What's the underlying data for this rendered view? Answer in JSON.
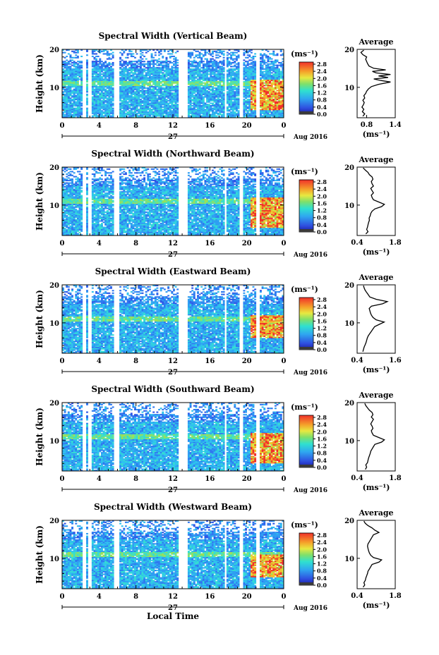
{
  "figure": {
    "colorbar_unit": "(ms⁻¹)",
    "date_label": "Aug 2016",
    "day_label": "27",
    "x_axis_title": "Local Time",
    "y_axis_title": "Height (km)",
    "average_title": "Average",
    "average_xlabel": "(ms⁻¹)"
  },
  "chart_data": [
    {
      "type": "heatmap",
      "title": "Spectral Width (Vertical Beam)",
      "xlim": [
        0,
        24
      ],
      "x_ticks": [
        "0",
        "4",
        "8",
        "12",
        "16",
        "20",
        "0"
      ],
      "ylim": [
        2,
        20
      ],
      "y_ticks": [
        "20",
        "10"
      ],
      "colorbar": {
        "range": [
          0.0,
          2.8
        ],
        "ticks": [
          "2.8",
          "2.4",
          "2.0",
          "1.6",
          "1.2",
          "0.8",
          "0.4",
          "0.0"
        ]
      },
      "data_gaps_hours": [
        [
          2.3,
          2.6
        ],
        [
          2.9,
          3.2
        ],
        [
          5.6,
          6.2
        ],
        [
          12.6,
          13.6
        ],
        [
          17.6,
          17.8
        ],
        [
          19.2,
          19.6
        ],
        [
          21.0,
          21.3
        ]
      ],
      "high_width_region": {
        "x": [
          20.4,
          24
        ],
        "y": [
          4,
          12
        ]
      },
      "average_profile": {
        "xlim": [
          0.6,
          1.4
        ],
        "x_ticks": [
          "0.8",
          "1.4"
        ],
        "ylim": [
          2,
          20
        ],
        "y_ticks": [
          "20",
          "10"
        ],
        "height_km": [
          2.4,
          3,
          3.6,
          4.2,
          4.8,
          5.4,
          6,
          6.6,
          7.2,
          7.8,
          8.4,
          9,
          9.6,
          10.2,
          10.8,
          11.4,
          11.8,
          12.2,
          12.6,
          13,
          13.4,
          13.8,
          14.2,
          14.6,
          15,
          15.6,
          16.2,
          16.8,
          17.4,
          18,
          18.6,
          19.2,
          19.8
        ],
        "width_ms": [
          0.72,
          0.76,
          0.71,
          0.74,
          0.7,
          0.73,
          0.75,
          0.72,
          0.76,
          0.74,
          0.78,
          0.8,
          0.84,
          0.9,
          1.05,
          1.3,
          1.1,
          0.95,
          1.25,
          1.05,
          1.3,
          1.0,
          0.92,
          1.2,
          0.95,
          0.85,
          0.82,
          0.8,
          0.78,
          0.8,
          0.72,
          0.68,
          0.74
        ]
      }
    },
    {
      "type": "heatmap",
      "title": "Spectral Width (Northward Beam)",
      "xlim": [
        0,
        24
      ],
      "x_ticks": [
        "0",
        "4",
        "8",
        "12",
        "16",
        "20",
        "0"
      ],
      "ylim": [
        2,
        20
      ],
      "y_ticks": [
        "20",
        "10"
      ],
      "colorbar": {
        "range": [
          0.0,
          2.8
        ],
        "ticks": [
          "2.8",
          "2.4",
          "2.0",
          "1.6",
          "1.2",
          "0.8",
          "0.4",
          "0.0"
        ]
      },
      "data_gaps_hours": [
        [
          2.3,
          2.6
        ],
        [
          2.9,
          3.2
        ],
        [
          5.6,
          6.2
        ],
        [
          12.6,
          13.6
        ],
        [
          17.6,
          17.8
        ],
        [
          19.2,
          19.6
        ],
        [
          21.0,
          21.3
        ]
      ],
      "high_width_region": {
        "x": [
          20.4,
          24
        ],
        "y": [
          4,
          12
        ]
      },
      "average_profile": {
        "xlim": [
          0.4,
          1.8
        ],
        "x_ticks": [
          "0.4",
          "1.8"
        ],
        "ylim": [
          2,
          20
        ],
        "y_ticks": [
          "20",
          "10"
        ],
        "height_km": [
          2.4,
          3,
          3.6,
          4.2,
          4.8,
          5.4,
          6,
          6.6,
          7.2,
          7.8,
          8.4,
          9,
          9.6,
          10.2,
          10.8,
          11.4,
          12,
          12.6,
          13.2,
          13.8,
          14.4,
          15,
          15.6,
          16.2,
          16.8,
          17.4,
          18,
          18.6,
          19.2,
          19.8
        ],
        "width_ms": [
          0.72,
          0.8,
          0.75,
          0.78,
          0.8,
          0.82,
          0.85,
          0.84,
          0.88,
          0.9,
          0.95,
          1.05,
          1.3,
          1.4,
          1.2,
          1.0,
          0.95,
          0.92,
          1.0,
          0.95,
          0.9,
          1.0,
          0.95,
          0.92,
          0.98,
          0.95,
          0.85,
          0.8,
          0.7,
          0.62
        ]
      }
    },
    {
      "type": "heatmap",
      "title": "Spectral Width (Eastward Beam)",
      "xlim": [
        0,
        24
      ],
      "x_ticks": [
        "0",
        "4",
        "8",
        "12",
        "16",
        "20",
        "0"
      ],
      "ylim": [
        2,
        20
      ],
      "y_ticks": [
        "20",
        "10"
      ],
      "colorbar": {
        "range": [
          0.0,
          2.8
        ],
        "ticks": [
          "2.8",
          "2.4",
          "2.0",
          "1.6",
          "1.2",
          "0.8",
          "0.4",
          "0.0"
        ]
      },
      "data_gaps_hours": [
        [
          2.3,
          2.6
        ],
        [
          2.9,
          3.2
        ],
        [
          5.6,
          6.2
        ],
        [
          12.6,
          13.6
        ],
        [
          17.6,
          17.8
        ],
        [
          19.2,
          19.6
        ],
        [
          21.0,
          21.3
        ]
      ],
      "high_width_region": {
        "x": [
          20.4,
          24
        ],
        "y": [
          6,
          12
        ]
      },
      "average_profile": {
        "xlim": [
          0.4,
          1.6
        ],
        "x_ticks": [
          "0.4",
          "1.6"
        ],
        "ylim": [
          2,
          20
        ],
        "y_ticks": [
          "20",
          "10"
        ],
        "height_km": [
          2.4,
          3,
          3.6,
          4.2,
          4.8,
          5.4,
          6,
          6.6,
          7.2,
          7.8,
          8.4,
          9,
          9.6,
          10.2,
          10.8,
          11.4,
          12,
          12.6,
          13.2,
          13.8,
          14.4,
          15,
          15.6,
          16.2,
          16.8,
          17.4,
          18,
          18.6,
          19.2,
          19.8
        ],
        "width_ms": [
          0.58,
          0.6,
          0.62,
          0.65,
          0.68,
          0.7,
          0.72,
          0.75,
          0.8,
          0.85,
          0.9,
          0.95,
          1.1,
          1.25,
          1.0,
          0.9,
          0.85,
          0.82,
          0.8,
          0.78,
          0.85,
          1.2,
          1.35,
          1.0,
          0.8,
          0.75,
          0.7,
          0.65,
          0.62,
          0.6
        ]
      }
    },
    {
      "type": "heatmap",
      "title": "Spectral Width (Southward Beam)",
      "xlim": [
        0,
        24
      ],
      "x_ticks": [
        "0",
        "4",
        "8",
        "12",
        "16",
        "20",
        "0"
      ],
      "ylim": [
        2,
        20
      ],
      "y_ticks": [
        "20",
        "10"
      ],
      "colorbar": {
        "range": [
          0.0,
          2.8
        ],
        "ticks": [
          "2.8",
          "2.4",
          "2.0",
          "1.6",
          "1.2",
          "0.8",
          "0.4",
          "0.0"
        ]
      },
      "data_gaps_hours": [
        [
          2.3,
          2.6
        ],
        [
          2.9,
          3.2
        ],
        [
          5.6,
          6.2
        ],
        [
          12.6,
          13.6
        ],
        [
          17.6,
          17.8
        ],
        [
          19.2,
          19.6
        ],
        [
          21.0,
          21.3
        ]
      ],
      "high_width_region": {
        "x": [
          20.4,
          24
        ],
        "y": [
          4,
          12
        ]
      },
      "average_profile": {
        "xlim": [
          0.4,
          1.8
        ],
        "x_ticks": [
          "0.4",
          "1.8"
        ],
        "ylim": [
          2,
          20
        ],
        "y_ticks": [
          "20",
          "10"
        ],
        "height_km": [
          2.4,
          3,
          3.6,
          4.2,
          4.8,
          5.4,
          6,
          6.6,
          7.2,
          7.8,
          8.4,
          9,
          9.6,
          10.2,
          10.8,
          11.4,
          12,
          12.6,
          13.2,
          13.8,
          14.4,
          15,
          15.6,
          16.2,
          16.8,
          17.4,
          18,
          18.6,
          19.2,
          19.8
        ],
        "width_ms": [
          0.7,
          0.75,
          0.72,
          0.78,
          0.8,
          0.82,
          0.85,
          0.88,
          0.9,
          0.95,
          1.0,
          1.05,
          1.3,
          1.4,
          1.2,
          1.0,
          0.95,
          0.92,
          0.98,
          0.95,
          0.9,
          0.95,
          1.0,
          0.92,
          0.98,
          0.95,
          0.85,
          0.78,
          0.72,
          0.68
        ]
      }
    },
    {
      "type": "heatmap",
      "title": "Spectral Width (Westward Beam)",
      "xlim": [
        0,
        24
      ],
      "x_ticks": [
        "0",
        "4",
        "8",
        "12",
        "16",
        "20",
        "0"
      ],
      "ylim": [
        2,
        20
      ],
      "y_ticks": [
        "20",
        "10"
      ],
      "colorbar": {
        "range": [
          0.0,
          2.8
        ],
        "ticks": [
          "2.8",
          "2.4",
          "2.0",
          "1.6",
          "1.2",
          "0.8",
          "0.4",
          "0.0"
        ]
      },
      "data_gaps_hours": [
        [
          2.3,
          2.6
        ],
        [
          2.9,
          3.2
        ],
        [
          5.6,
          6.2
        ],
        [
          12.6,
          13.6
        ],
        [
          17.6,
          17.8
        ],
        [
          19.2,
          19.6
        ],
        [
          21.0,
          21.3
        ]
      ],
      "high_width_region": {
        "x": [
          20.4,
          24
        ],
        "y": [
          5,
          11
        ]
      },
      "average_profile": {
        "xlim": [
          0.4,
          1.8
        ],
        "x_ticks": [
          "0.4",
          "1.8"
        ],
        "ylim": [
          2,
          20
        ],
        "y_ticks": [
          "20",
          "10"
        ],
        "height_km": [
          2.4,
          3,
          3.6,
          4.2,
          4.8,
          5.4,
          6,
          6.6,
          7.2,
          7.8,
          8.4,
          9,
          9.6,
          10.2,
          10.8,
          11.4,
          12,
          12.6,
          13.2,
          13.8,
          14.4,
          15,
          15.6,
          16.2,
          16.8,
          17.4,
          18,
          18.6,
          19.2,
          19.8
        ],
        "width_ms": [
          0.62,
          0.68,
          0.65,
          0.7,
          0.72,
          0.75,
          0.78,
          0.8,
          0.85,
          0.9,
          0.95,
          1.2,
          1.3,
          1.0,
          0.9,
          0.85,
          0.82,
          0.8,
          0.78,
          0.8,
          0.85,
          0.9,
          0.95,
          1.0,
          1.2,
          1.05,
          0.95,
          0.8,
          0.7,
          0.65
        ]
      }
    }
  ]
}
